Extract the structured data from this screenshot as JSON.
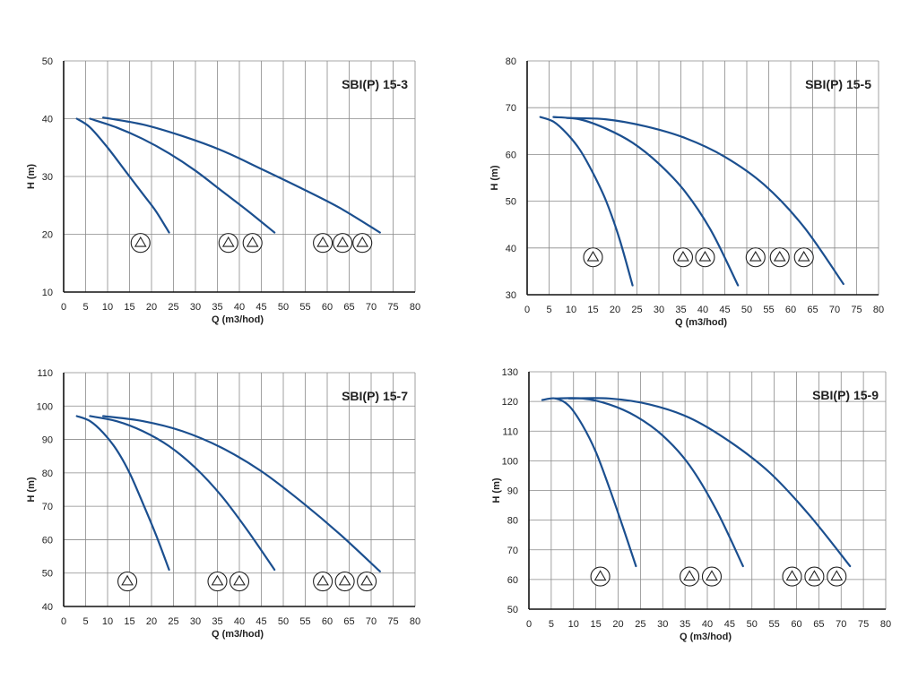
{
  "colors": {
    "curve": "#1b4f8f",
    "grid": "#8a8a8a",
    "frame": "#111111"
  },
  "icons": {
    "pump_symbol": "pump-symbol-icon"
  },
  "chart_data": [
    {
      "type": "line",
      "title": "SBI(P) 15-3",
      "xlabel": "Q (m3/hod)",
      "ylabel": "H (m)",
      "xlim": [
        0,
        80
      ],
      "ylim": [
        10,
        50
      ],
      "xticks": [
        0,
        5,
        10,
        15,
        20,
        25,
        30,
        35,
        40,
        45,
        50,
        55,
        60,
        65,
        70,
        75,
        80
      ],
      "yticks": [
        10,
        20,
        30,
        40,
        50
      ],
      "grid": true,
      "series": [
        {
          "x": [
            3,
            6,
            10,
            14,
            18,
            21,
            24
          ],
          "values": [
            40,
            38.5,
            35,
            31,
            27,
            24,
            20.3
          ]
        },
        {
          "x": [
            6,
            12,
            18,
            24,
            30,
            36,
            42,
            48
          ],
          "values": [
            40,
            38.5,
            36.5,
            34,
            31,
            27.5,
            24,
            20.3
          ]
        },
        {
          "x": [
            9,
            18,
            27,
            36,
            45,
            54,
            63,
            72
          ],
          "values": [
            40.2,
            39,
            37,
            34.5,
            31.3,
            28,
            24.5,
            20.3
          ]
        }
      ],
      "pump_groups": [
        {
          "y": 18.5,
          "x": [
            17.5
          ]
        },
        {
          "y": 18.5,
          "x": [
            37.5,
            43
          ]
        },
        {
          "y": 18.5,
          "x": [
            59,
            63.5,
            68
          ]
        }
      ]
    },
    {
      "type": "line",
      "title": "SBI(P) 15-5",
      "xlabel": "Q (m3/hod)",
      "ylabel": "H (m)",
      "xlim": [
        0,
        80
      ],
      "ylim": [
        30,
        80
      ],
      "xticks": [
        0,
        5,
        10,
        15,
        20,
        25,
        30,
        35,
        40,
        45,
        50,
        55,
        60,
        65,
        70,
        75,
        80
      ],
      "yticks": [
        30,
        40,
        50,
        60,
        70,
        80
      ],
      "grid": true,
      "series": [
        {
          "x": [
            3,
            6,
            9,
            12,
            15,
            18,
            21,
            24
          ],
          "values": [
            68,
            67,
            64.5,
            61,
            56,
            50,
            42,
            32
          ]
        },
        {
          "x": [
            6,
            12,
            18,
            24,
            30,
            36,
            42,
            48
          ],
          "values": [
            68,
            67.5,
            65.5,
            62.5,
            58,
            52,
            43.5,
            32
          ]
        },
        {
          "x": [
            9,
            18,
            27,
            36,
            45,
            54,
            63,
            72
          ],
          "values": [
            67.8,
            67.5,
            66,
            63.5,
            59.5,
            53.5,
            44.5,
            32.3
          ]
        }
      ],
      "pump_groups": [
        {
          "y": 38,
          "x": [
            15
          ]
        },
        {
          "y": 38,
          "x": [
            35.5,
            40.5
          ]
        },
        {
          "y": 38,
          "x": [
            52,
            57.5,
            63
          ]
        }
      ]
    },
    {
      "type": "line",
      "title": "SBI(P) 15-7",
      "xlabel": "Q (m3/hod)",
      "ylabel": "H (m)",
      "xlim": [
        0,
        80
      ],
      "ylim": [
        40,
        110
      ],
      "xticks": [
        0,
        5,
        10,
        15,
        20,
        25,
        30,
        35,
        40,
        45,
        50,
        55,
        60,
        65,
        70,
        75,
        80
      ],
      "yticks": [
        40,
        50,
        60,
        70,
        80,
        90,
        100,
        110
      ],
      "grid": true,
      "series": [
        {
          "x": [
            3,
            6,
            9,
            12,
            15,
            18,
            21,
            24
          ],
          "values": [
            97,
            95.5,
            92,
            87,
            80,
            71,
            61.5,
            51
          ]
        },
        {
          "x": [
            6,
            12,
            18,
            24,
            30,
            36,
            42,
            48
          ],
          "values": [
            97,
            95.5,
            92.5,
            88,
            81.5,
            73,
            62.5,
            51
          ]
        },
        {
          "x": [
            9,
            18,
            27,
            36,
            45,
            54,
            63,
            72
          ],
          "values": [
            97,
            95.5,
            92.5,
            87.5,
            80.5,
            71.5,
            61.5,
            50.5
          ]
        }
      ],
      "pump_groups": [
        {
          "y": 47.5,
          "x": [
            14.5
          ]
        },
        {
          "y": 47.5,
          "x": [
            35,
            40
          ]
        },
        {
          "y": 47.5,
          "x": [
            59,
            64,
            69
          ]
        }
      ]
    },
    {
      "type": "line",
      "title": "SBI(P) 15-9",
      "xlabel": "Q (m3/hod)",
      "ylabel": "H (m)",
      "xlim": [
        0,
        80
      ],
      "ylim": [
        50,
        130
      ],
      "xticks": [
        0,
        5,
        10,
        15,
        20,
        25,
        30,
        35,
        40,
        45,
        50,
        55,
        60,
        65,
        70,
        75,
        80
      ],
      "yticks": [
        50,
        60,
        70,
        80,
        90,
        100,
        110,
        120,
        130
      ],
      "grid": true,
      "series": [
        {
          "x": [
            3,
            6,
            9,
            12,
            15,
            18,
            21,
            24
          ],
          "values": [
            120.5,
            121,
            118.5,
            112,
            103,
            91,
            78,
            64.5
          ]
        },
        {
          "x": [
            6,
            12,
            18,
            24,
            30,
            36,
            42,
            48
          ],
          "values": [
            121,
            121,
            119,
            115,
            108.5,
            98.5,
            83.5,
            64.5
          ]
        },
        {
          "x": [
            9,
            18,
            27,
            36,
            45,
            54,
            63,
            72
          ],
          "values": [
            121,
            121,
            119,
            114.5,
            106.5,
            96,
            81.5,
            64.5
          ]
        }
      ],
      "pump_groups": [
        {
          "y": 61,
          "x": [
            16
          ]
        },
        {
          "y": 61,
          "x": [
            36,
            41
          ]
        },
        {
          "y": 61,
          "x": [
            59,
            64,
            69
          ]
        }
      ]
    }
  ]
}
